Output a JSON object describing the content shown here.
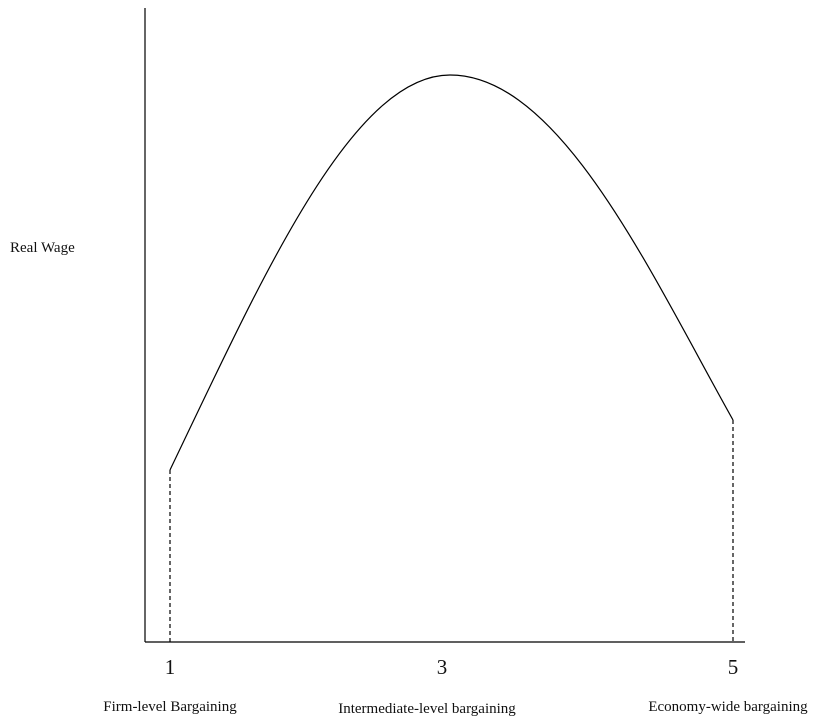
{
  "y_axis_label": "Real Wage",
  "x_axis": {
    "ticks": [
      "1",
      "3",
      "5"
    ],
    "labels": [
      "Firm-level Bargaining",
      "Intermediate-level bargaining",
      "Economy-wide bargaining"
    ]
  }
}
